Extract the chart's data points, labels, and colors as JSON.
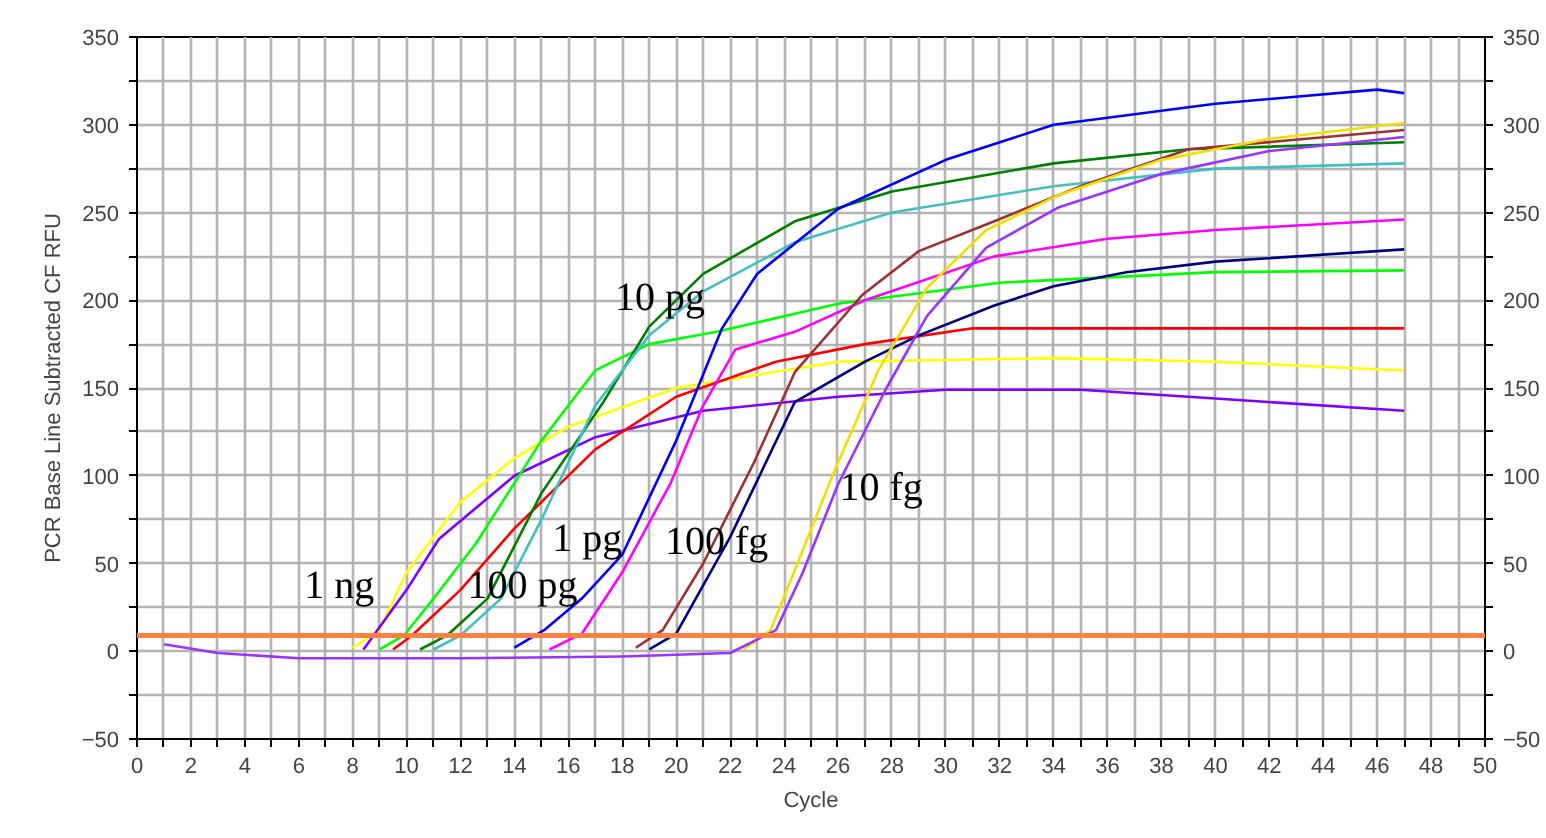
{
  "chart_data": {
    "type": "line",
    "xlabel": "Cycle",
    "ylabel": "PCR Base Line Subtracted CF RFU",
    "xlim": [
      0,
      50
    ],
    "ylim": [
      -50,
      350
    ],
    "y2lim": [
      -50,
      350
    ],
    "xticks": [
      0,
      {
        "value": 1,
        "label": null
      },
      2,
      {
        "value": 3,
        "label": null
      },
      4,
      {
        "value": 5,
        "label": null
      },
      6,
      {
        "value": 7,
        "label": null
      },
      8,
      {
        "value": 9,
        "label": null
      },
      10,
      {
        "value": 11,
        "label": null
      },
      12,
      {
        "value": 13,
        "label": null
      },
      14,
      {
        "value": 15,
        "label": null
      },
      16,
      {
        "value": 17,
        "label": null
      },
      18,
      {
        "value": 19,
        "label": null
      },
      20,
      {
        "value": 21,
        "label": null
      },
      22,
      {
        "value": 23,
        "label": null
      },
      24,
      {
        "value": 25,
        "label": null
      },
      26,
      {
        "value": 27,
        "label": null
      },
      28,
      {
        "value": 29,
        "label": null
      },
      30,
      {
        "value": 31,
        "label": null
      },
      32,
      {
        "value": 33,
        "label": null
      },
      34,
      {
        "value": 35,
        "label": null
      },
      36,
      {
        "value": 37,
        "label": null
      },
      38,
      {
        "value": 39,
        "label": null
      },
      40,
      {
        "value": 41,
        "label": null
      },
      42,
      {
        "value": 43,
        "label": null
      },
      44,
      {
        "value": 45,
        "label": null
      },
      46,
      {
        "value": 47,
        "label": null
      },
      48,
      {
        "value": 49,
        "label": null
      },
      50
    ],
    "yticks": [
      -50,
      {
        "value": -25,
        "label": null
      },
      0,
      {
        "value": 25,
        "label": null
      },
      50,
      {
        "value": 75,
        "label": null
      },
      100,
      {
        "value": 125,
        "label": null
      },
      150,
      {
        "value": 175,
        "label": null
      },
      200,
      {
        "value": 225,
        "label": null
      },
      250,
      {
        "value": 275,
        "label": null
      },
      300,
      {
        "value": 325,
        "label": null
      },
      350
    ],
    "y2ticks": [
      -50,
      {
        "value": -25,
        "label": null
      },
      0,
      {
        "value": 25,
        "label": null
      },
      50,
      {
        "value": 75,
        "label": null
      },
      100,
      {
        "value": 125,
        "label": null
      },
      150,
      {
        "value": 175,
        "label": null
      },
      200,
      {
        "value": 225,
        "label": null
      },
      250,
      {
        "value": 275,
        "label": null
      },
      300,
      {
        "value": 325,
        "label": null
      },
      350
    ],
    "grid": true,
    "marker": "none",
    "line_style": "solid",
    "ref_lines": [
      {
        "axis": "y",
        "value": 9,
        "color": "#ff8040"
      }
    ],
    "annotations": [
      "1 ng",
      "100 pg",
      "1 pg",
      "100 fg",
      "10 fg",
      "10 pg"
    ],
    "series": [
      {
        "color": "#ffff00",
        "x": [
          8,
          9,
          10,
          12,
          14,
          16,
          20,
          26,
          34,
          40,
          47
        ],
        "values": [
          2,
          12,
          45,
          85,
          110,
          128,
          150,
          165,
          167,
          165,
          160
        ]
      },
      {
        "color": "#8000ff",
        "x": [
          8.4,
          10,
          11.2,
          14,
          17,
          21,
          26,
          30,
          35,
          40,
          47
        ],
        "values": [
          1,
          35,
          64,
          100,
          122,
          137,
          145,
          149,
          149,
          144,
          137
        ]
      },
      {
        "color": "#00ff00",
        "x": [
          9,
          9.9,
          11,
          12.6,
          15,
          17,
          19,
          21.5,
          26,
          32,
          40,
          47
        ],
        "values": [
          1,
          9,
          30,
          62,
          120,
          160,
          175,
          182,
          198,
          210,
          216,
          217
        ]
      },
      {
        "color": "#ff0000",
        "x": [
          9.5,
          10.2,
          12,
          14,
          17,
          20,
          23.7,
          27,
          31,
          40,
          47
        ],
        "values": [
          1,
          9,
          35,
          70,
          115,
          145,
          165,
          175,
          184,
          184,
          184
        ]
      },
      {
        "color": "#008000",
        "x": [
          10.5,
          11.5,
          13,
          15,
          17.3,
          19,
          21,
          24.4,
          28,
          34,
          39,
          47
        ],
        "values": [
          1,
          9,
          30,
          90,
          142,
          185,
          215,
          245,
          262,
          278,
          286,
          290
        ]
      },
      {
        "color": "#40c0c0",
        "x": [
          11,
          12,
          13.5,
          15,
          17,
          19,
          21,
          24.4,
          28,
          34,
          40,
          47
        ],
        "values": [
          1,
          9,
          30,
          75,
          140,
          180,
          205,
          233,
          250,
          265,
          275,
          278
        ]
      },
      {
        "color": "#0000ff",
        "x": [
          14,
          15.1,
          16.5,
          18,
          20,
          21.7,
          23,
          26,
          30,
          34,
          40,
          46,
          47
        ],
        "values": [
          2,
          12,
          30,
          55,
          120,
          184,
          215,
          252,
          280,
          300,
          312,
          320,
          318
        ]
      },
      {
        "color": "#ff00ff",
        "x": [
          15.3,
          16.5,
          18,
          19.8,
          21,
          22.2,
          24.4,
          27,
          31.8,
          36,
          40,
          47
        ],
        "values": [
          1,
          10,
          45,
          96,
          140,
          172,
          182,
          200,
          225,
          235,
          240,
          246
        ]
      },
      {
        "color": "#a03030",
        "x": [
          18.5,
          19.5,
          21,
          22.9,
          24.4,
          26.9,
          29,
          31.8,
          35,
          39,
          47
        ],
        "values": [
          2,
          12,
          50,
          108,
          159,
          203,
          228,
          245,
          265,
          286,
          297
        ]
      },
      {
        "color": "#000080",
        "x": [
          19,
          20,
          22,
          24.4,
          27,
          29,
          31.8,
          34,
          36.7,
          40,
          47
        ],
        "values": [
          1,
          10,
          65,
          142,
          165,
          180,
          197,
          208,
          216,
          222,
          229
        ]
      },
      {
        "color": "#f0e000",
        "x": [
          22.5,
          23.5,
          24.5,
          25.9,
          27.5,
          29.3,
          31.5,
          34.2,
          38,
          42,
          47
        ],
        "values": [
          1,
          12,
          50,
          104,
          160,
          207,
          240,
          260,
          280,
          292,
          301
        ]
      },
      {
        "color": "#9933ff",
        "x": [
          1,
          3,
          6,
          12,
          18,
          22,
          23.7,
          24.7,
          26,
          27.8,
          29.3,
          31.5,
          34.2,
          38,
          42,
          47
        ],
        "values": [
          4,
          -1,
          -4,
          -4,
          -3,
          -1,
          12,
          45,
          95,
          150,
          191,
          230,
          253,
          272,
          285,
          293
        ]
      }
    ]
  }
}
